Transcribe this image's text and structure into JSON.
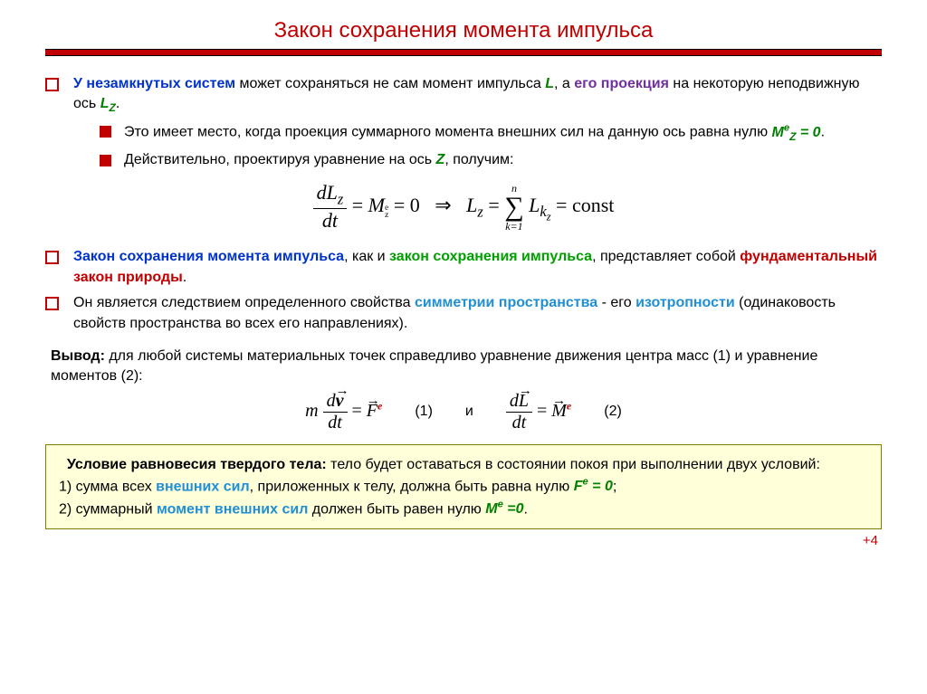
{
  "title": "Закон сохранения момента импульса",
  "colors": {
    "accent": "#c00000",
    "blue": "#0033cc",
    "green": "#008000",
    "green2": "#00a000",
    "purple": "#7030a0",
    "sky": "#1f8fd6",
    "boxBg": "#ffffd9",
    "boxBorder": "#808000"
  },
  "b1": {
    "t1": "У незамкнутых систем",
    "t2": " может сохраняться не сам момент импульса ",
    "L": "L",
    "t3": ", а ",
    "t4": "его проекция",
    "t5": " на некоторую неподвижную ось ",
    "Lz": "L",
    "Lz_sub": "Z",
    "dot": "."
  },
  "b1a": {
    "t1": "Это имеет место, когда проекция суммарного момента внешних сил на данную ось равна нулю ",
    "eq": "M",
    "eq_supe": "e",
    "eq_subz": "Z",
    "eq_rest": " = 0",
    "dot": "."
  },
  "b1b": {
    "t1": "Действительно, проектируя уравнение на ось ",
    "Z": "Z",
    "t2": ", получим:"
  },
  "eq1": {
    "num": "dL",
    "num_sub": "z",
    "den": "dt",
    "eqM": "M",
    "M_sub": "z",
    "M_sup": "e",
    "zero": "0",
    "arrow": "⇒",
    "Lz": "L",
    "Lz_sub": "z",
    "sum_top": "n",
    "sum_bot": "k=1",
    "Lk": "L",
    "Lk_sub": "k",
    "Lk_subz": "z",
    "const": "const"
  },
  "b2": {
    "t1": "Закон сохранения момента импульса",
    "t2": ", как и ",
    "t3": "закон сохранения импульса",
    "t4": ", представляет собой ",
    "t5": "фундаментальный закон природы",
    "dot": "."
  },
  "b3": {
    "t1": "Он является следствием определенного свойства ",
    "t2": "симметрии пространства",
    "t3": " - его ",
    "t4": "изотропности",
    "t5": " (одинаковость свойств пространства во всех его направлениях)."
  },
  "vyvod": {
    "lbl": "Вывод:",
    "t1": " для любой системы материальных точек справедливо уравнение движения центра масс (1) и уравнение моментов (2):"
  },
  "eq2": {
    "m": "m",
    "dv": "d",
    "v": "v",
    "dt": "dt",
    "F": "F",
    "e": "e",
    "n1": "(1)",
    "and": "и",
    "dL": "d",
    "L": "L",
    "M": "M",
    "n2": "(2)"
  },
  "cond": {
    "t1a": "Условие равновесия твердого тела:",
    "t1b": " тело будет оставаться в состоянии покоя при выполнении двух условий:",
    "l1a": "1) сумма всех ",
    "l1b": "внешних сил",
    "l1c": ", приложенных к телу, должна быть равна нулю ",
    "l1d": "F",
    "l1e": "e",
    "l1f": " = 0",
    "semi": ";",
    "l2a": "2) суммарный ",
    "l2b": "момент внешних сил",
    "l2c": " должен быть равен нулю ",
    "l2d": "M",
    "l2e": "e",
    "l2f": " =0",
    "dot": "."
  },
  "pager": "+4"
}
